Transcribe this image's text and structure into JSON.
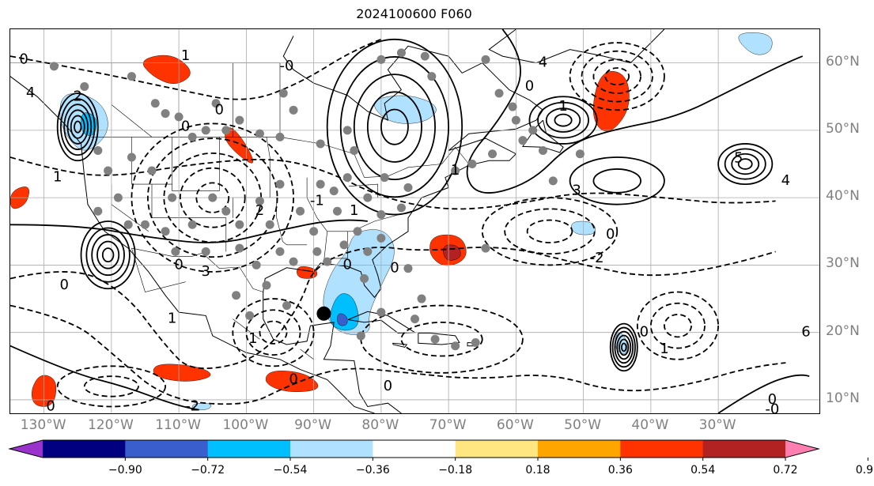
{
  "title": "2024100600 F060",
  "lat_labels": [
    {
      "text": "60°N",
      "lat": 60
    },
    {
      "text": "50°N",
      "lat": 50
    },
    {
      "text": "40°N",
      "lat": 40
    },
    {
      "text": "30°N",
      "lat": 30
    },
    {
      "text": "20°N",
      "lat": 20
    },
    {
      "text": "10°N",
      "lat": 10
    }
  ],
  "lon_labels": [
    {
      "text": "130°W",
      "lon": -130
    },
    {
      "text": "120°W",
      "lon": -120
    },
    {
      "text": "110°W",
      "lon": -110
    },
    {
      "text": "100°W",
      "lon": -100
    },
    {
      "text": "90°W",
      "lon": -90
    },
    {
      "text": "80°W",
      "lon": -80
    },
    {
      "text": "70°W",
      "lon": -70
    },
    {
      "text": "60°W",
      "lon": -60
    },
    {
      "text": "50°W",
      "lon": -50
    },
    {
      "text": "40°W",
      "lon": -40
    },
    {
      "text": "30°W",
      "lon": -30
    }
  ],
  "extent": {
    "lon_min": -135,
    "lon_max": -15,
    "lat_min": 8,
    "lat_max": 65
  },
  "colorbar": {
    "colors": [
      "#9933cc",
      "#000080",
      "#3a5fcd",
      "#00bfff",
      "#b0e2ff",
      "#ffffff",
      "#ffe680",
      "#ffa500",
      "#ff3300",
      "#b22222",
      "#ff80b0"
    ],
    "ticks": [
      "−0.90",
      "−0.72",
      "−0.54",
      "−0.36",
      "−0.18",
      "0.18",
      "0.36",
      "0.54",
      "0.72",
      "0.90"
    ]
  },
  "colors": {
    "contour": "#000000",
    "station": "#808080",
    "storm": "#000000",
    "gridline": "#aaaaaa",
    "border": "#000000"
  },
  "contour_labels": [
    "0",
    "2",
    "1",
    "3",
    "5",
    "4",
    "6",
    "-0",
    "-1",
    "-2"
  ],
  "stations": [
    [
      -128.5,
      59.5
    ],
    [
      -124,
      56.5
    ],
    [
      -117,
      58
    ],
    [
      -113.5,
      54
    ],
    [
      -112,
      52.5
    ],
    [
      -110,
      52
    ],
    [
      -108,
      49
    ],
    [
      -106,
      50
    ],
    [
      -104.5,
      54
    ],
    [
      -103,
      50
    ],
    [
      -101,
      51.5
    ],
    [
      -98,
      49.5
    ],
    [
      -95,
      49
    ],
    [
      -93,
      53
    ],
    [
      -94.5,
      55.5
    ],
    [
      -89,
      48
    ],
    [
      -85,
      50
    ],
    [
      -84,
      47
    ],
    [
      -80,
      60.5
    ],
    [
      -73.5,
      61
    ],
    [
      -72.5,
      58
    ],
    [
      -60.5,
      53.5
    ],
    [
      -59,
      48.5
    ],
    [
      -56,
      47
    ],
    [
      -57.5,
      50
    ],
    [
      -66.5,
      45
    ],
    [
      -69,
      44
    ],
    [
      -63.5,
      46.5
    ],
    [
      -60,
      51.5
    ],
    [
      -62.5,
      55.5
    ],
    [
      -77,
      61.5
    ],
    [
      -64.5,
      60.5
    ],
    [
      -50.5,
      46.5
    ],
    [
      -54.5,
      42.5
    ],
    [
      -120.5,
      44
    ],
    [
      -122,
      47
    ],
    [
      -117,
      46
    ],
    [
      -114,
      44
    ],
    [
      -119,
      40
    ],
    [
      -122,
      38
    ],
    [
      -117.5,
      36
    ],
    [
      -115,
      36
    ],
    [
      -111,
      40
    ],
    [
      -112,
      35
    ],
    [
      -108,
      36
    ],
    [
      -105,
      40
    ],
    [
      -103,
      38
    ],
    [
      -101,
      36
    ],
    [
      -98,
      39.5
    ],
    [
      -95,
      42
    ],
    [
      -96.5,
      36
    ],
    [
      -92,
      38
    ],
    [
      -89,
      42
    ],
    [
      -87,
      41
    ],
    [
      -85,
      43
    ],
    [
      -82,
      40
    ],
    [
      -79.5,
      43
    ],
    [
      -76,
      41.5
    ],
    [
      -86.5,
      38
    ],
    [
      -83.5,
      35
    ],
    [
      -80,
      37.5
    ],
    [
      -77,
      38.5
    ],
    [
      -90,
      35
    ],
    [
      -95,
      32
    ],
    [
      -98.5,
      30
    ],
    [
      -101,
      32.5
    ],
    [
      -106,
      32
    ],
    [
      -110.5,
      32
    ],
    [
      -97,
      27
    ],
    [
      -93,
      30.5
    ],
    [
      -89.5,
      32
    ],
    [
      -88,
      30.5
    ],
    [
      -85.5,
      33
    ],
    [
      -82,
      32
    ],
    [
      -80,
      34
    ],
    [
      -101.5,
      25.5
    ],
    [
      -99.5,
      22.5
    ],
    [
      -94,
      24
    ],
    [
      -83,
      19.5
    ],
    [
      -80,
      23
    ],
    [
      -75,
      22
    ],
    [
      -69,
      18
    ],
    [
      -66,
      18.5
    ],
    [
      -72,
      19
    ],
    [
      -74,
      25
    ],
    [
      -64.5,
      32.5
    ],
    [
      -76,
      29.5
    ],
    [
      -82.5,
      28
    ]
  ],
  "storm_center": {
    "lon": -88.5,
    "lat": 22.8
  },
  "positive_regions": [
    {
      "level": 0.54,
      "pts": [
        [
          -116,
          60.5
        ],
        [
          -111,
          61.5
        ],
        [
          -107.5,
          58.5
        ],
        [
          -110.5,
          56.5
        ],
        [
          -114,
          58
        ]
      ]
    },
    {
      "level": 0.54,
      "pts": [
        [
          -102.5,
          51
        ],
        [
          -100,
          48
        ],
        [
          -98.5,
          44.5
        ],
        [
          -101.5,
          46.5
        ],
        [
          -103.5,
          49
        ]
      ]
    },
    {
      "level": 0.54,
      "pts": [
        [
          -72.5,
          34.5
        ],
        [
          -68,
          34.5
        ],
        [
          -67,
          31
        ],
        [
          -70.5,
          29.5
        ],
        [
          -73,
          31.5
        ]
      ]
    },
    {
      "level": 0.72,
      "pts": [
        [
          -71,
          33
        ],
        [
          -68.5,
          33
        ],
        [
          -68,
          31
        ],
        [
          -70.5,
          30.5
        ]
      ]
    },
    {
      "level": 0.54,
      "pts": [
        [
          -47.5,
          59
        ],
        [
          -43.5,
          58.5
        ],
        [
          -43,
          53
        ],
        [
          -46.5,
          49
        ],
        [
          -49,
          52
        ]
      ]
    },
    {
      "level": 0.54,
      "pts": [
        [
          -113.5,
          15.5
        ],
        [
          -107,
          15
        ],
        [
          -104.5,
          13.5
        ],
        [
          -109,
          12.5
        ],
        [
          -114,
          13.5
        ]
      ]
    },
    {
      "level": 0.54,
      "pts": [
        [
          -96.5,
          14.5
        ],
        [
          -91,
          14
        ],
        [
          -88.5,
          11.5
        ],
        [
          -94,
          11
        ],
        [
          -97.5,
          12.5
        ]
      ]
    },
    {
      "level": 0.54,
      "pts": [
        [
          -130.5,
          14
        ],
        [
          -128,
          13
        ],
        [
          -128.5,
          9
        ],
        [
          -131.5,
          9
        ],
        [
          -132,
          11.5
        ]
      ]
    },
    {
      "level": 0.54,
      "pts": [
        [
          -135,
          41
        ],
        [
          -132,
          42
        ],
        [
          -132.5,
          39
        ],
        [
          -135,
          38
        ]
      ]
    },
    {
      "level": 0.54,
      "pts": [
        [
          -92.5,
          30
        ],
        [
          -89.5,
          29.5
        ],
        [
          -89.5,
          28
        ],
        [
          -92.5,
          28
        ]
      ]
    }
  ],
  "negative_regions": [
    {
      "level": -0.36,
      "pts": [
        [
          -127,
          56
        ],
        [
          -121.5,
          54.5
        ],
        [
          -120,
          50
        ],
        [
          -123.5,
          46.5
        ],
        [
          -126,
          48
        ],
        [
          -128,
          52
        ]
      ]
    },
    {
      "level": -0.54,
      "pts": [
        [
          -124.5,
          53
        ],
        [
          -122,
          52
        ],
        [
          -122.5,
          49
        ],
        [
          -124.5,
          49.5
        ]
      ]
    },
    {
      "level": -0.36,
      "pts": [
        [
          -82,
          54.5
        ],
        [
          -76,
          55.5
        ],
        [
          -71,
          53.5
        ],
        [
          -73.5,
          51
        ],
        [
          -79,
          51
        ]
      ]
    },
    {
      "level": -0.36,
      "pts": [
        [
          -84,
          35
        ],
        [
          -79.5,
          35.5
        ],
        [
          -77.5,
          32
        ],
        [
          -80,
          27
        ],
        [
          -82,
          22.5
        ],
        [
          -81.5,
          20
        ],
        [
          -84.5,
          19.5
        ],
        [
          -87,
          20.5
        ],
        [
          -89,
          24
        ],
        [
          -87.5,
          29
        ],
        [
          -85,
          32
        ]
      ]
    },
    {
      "level": -0.54,
      "pts": [
        [
          -86.5,
          26
        ],
        [
          -84,
          25.5
        ],
        [
          -83,
          21
        ],
        [
          -85.5,
          20
        ],
        [
          -88,
          21.5
        ]
      ]
    },
    {
      "level": -0.72,
      "pts": [
        [
          -86.5,
          23
        ],
        [
          -85,
          22.5
        ],
        [
          -85,
          21
        ],
        [
          -86.5,
          21
        ]
      ]
    },
    {
      "level": -0.36,
      "pts": [
        [
          -52,
          36.5
        ],
        [
          -48.5,
          36.5
        ],
        [
          -48,
          34.5
        ],
        [
          -51.5,
          34.5
        ]
      ]
    },
    {
      "level": -0.36,
      "pts": [
        [
          -45,
          20.5
        ],
        [
          -43.5,
          19
        ],
        [
          -43.5,
          16.5
        ],
        [
          -45.5,
          17.5
        ]
      ]
    },
    {
      "level": -0.36,
      "pts": [
        [
          -28,
          64.5
        ],
        [
          -22,
          64.5
        ],
        [
          -22,
          61.5
        ],
        [
          -25,
          61
        ]
      ]
    },
    {
      "level": -0.36,
      "pts": [
        [
          -108,
          9.5
        ],
        [
          -105,
          9.5
        ],
        [
          -105.5,
          8.5
        ],
        [
          -108,
          8.5
        ]
      ]
    }
  ],
  "highs": [
    {
      "lon": -120.5,
      "lat": 31.5,
      "rx": 4,
      "ry": 5,
      "n": 5
    },
    {
      "lon": -53,
      "lat": 51.5,
      "rx": 5,
      "ry": 3.5,
      "n": 4
    },
    {
      "lon": -26,
      "lat": 45,
      "rx": 4,
      "ry": 3,
      "n": 4
    },
    {
      "lon": -44,
      "lat": 17.8,
      "rx": 2,
      "ry": 3.5,
      "n": 6
    },
    {
      "lon": -45,
      "lat": 42.5,
      "rx": 7,
      "ry": 3.5,
      "n": 2
    },
    {
      "lon": -125,
      "lat": 50.5,
      "rx": 3,
      "ry": 5,
      "n": 6
    },
    {
      "lon": -78,
      "lat": 50.5,
      "rx": 10,
      "ry": 13,
      "n": 5
    }
  ],
  "lows": [
    {
      "lon": -105,
      "lat": 40,
      "rx": 12,
      "ry": 11,
      "n": 5
    },
    {
      "lon": -55,
      "lat": 35,
      "rx": 10,
      "ry": 5,
      "n": 3
    },
    {
      "lon": -45,
      "lat": 58,
      "rx": 7,
      "ry": 5,
      "n": 4
    },
    {
      "lon": -36,
      "lat": 21,
      "rx": 6,
      "ry": 5,
      "n": 3
    },
    {
      "lon": -96,
      "lat": 20,
      "rx": 6,
      "ry": 5,
      "n": 3
    },
    {
      "lon": -71,
      "lat": 19,
      "rx": 12,
      "ry": 5,
      "n": 2
    },
    {
      "lon": -120,
      "lat": 12,
      "rx": 8,
      "ry": 3,
      "n": 2
    }
  ]
}
